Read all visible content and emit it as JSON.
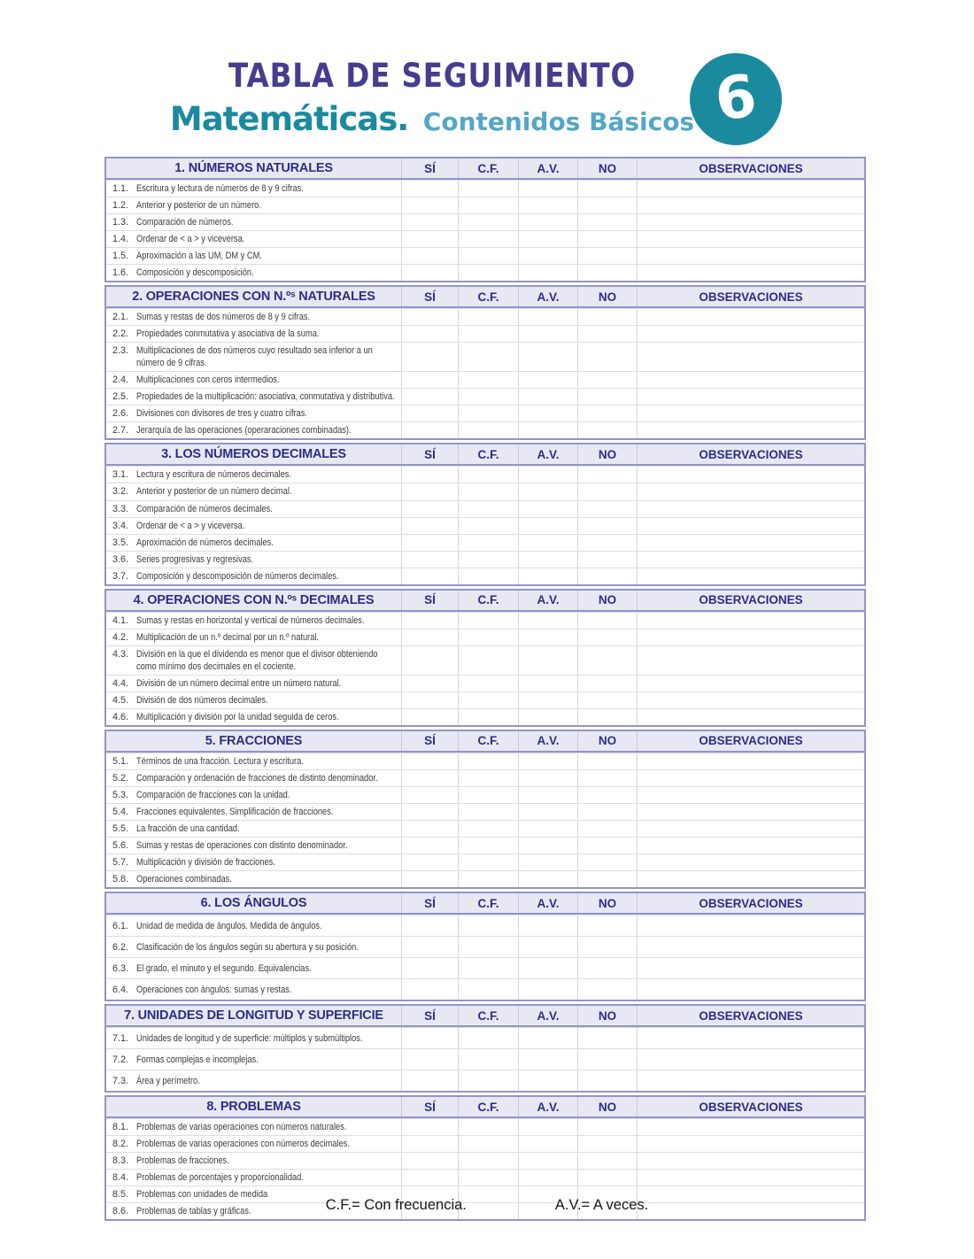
{
  "header": {
    "title": "TABLA DE SEGUIMIENTO",
    "subject": "Matemáticas.",
    "subtitle": "Contenidos Básicos",
    "grade": "6"
  },
  "columns": [
    "SÍ",
    "C.F.",
    "A.V.",
    "NO",
    "OBSERVACIONES"
  ],
  "sections": [
    {
      "title": "1. NÚMEROS NATURALES",
      "rows": [
        {
          "num": "1.1.",
          "text": "Escritura y lectura de números de 8 y 9 cifras."
        },
        {
          "num": "1.2.",
          "text": "Anterior y posterior de un número."
        },
        {
          "num": "1.3.",
          "text": "Comparación de números."
        },
        {
          "num": "1.4.",
          "text": "Ordenar de < a > y viceversa."
        },
        {
          "num": "1.5.",
          "text": "Aproximación a las UM, DM y CM."
        },
        {
          "num": "1.6.",
          "text": "Composición y descomposición."
        }
      ]
    },
    {
      "title": "2. OPERACIONES CON N.ºˢ NATURALES",
      "rows": [
        {
          "num": "2.1.",
          "text": "Sumas y restas de dos números de 8 y 9 cifras."
        },
        {
          "num": "2.2.",
          "text": "Propiedades conmutativa y asociativa de la suma."
        },
        {
          "num": "2.3.",
          "text": "Multiplicaciones de dos números cuyo resultado sea inferior a un número de 9 cifras."
        },
        {
          "num": "2.4.",
          "text": "Multiplicaciones con ceros intermedios."
        },
        {
          "num": "2.5.",
          "text": "Propiedades de la multiplicación: asociativa, conmutativa y distributiva."
        },
        {
          "num": "2.6.",
          "text": "Divisiones con divisores de tres y cuatro cifras."
        },
        {
          "num": "2.7.",
          "text": "Jerarquía de las operaciones (operaraciones combinadas)."
        }
      ]
    },
    {
      "title": "3. LOS NÚMEROS DECIMALES",
      "rows": [
        {
          "num": "3.1.",
          "text": "Lectura y escritura de números decimales."
        },
        {
          "num": "3.2.",
          "text": "Anterior y posterior de un número decimal."
        },
        {
          "num": "3.3.",
          "text": "Comparación de números decimales."
        },
        {
          "num": "3.4.",
          "text": "Ordenar de < a > y viceversa."
        },
        {
          "num": "3.5.",
          "text": "Aproximación de números decimales."
        },
        {
          "num": "3.6.",
          "text": "Series progresivas y regresivas."
        },
        {
          "num": "3.7.",
          "text": "Composición y descomposición de números decimales."
        }
      ]
    },
    {
      "title": "4. OPERACIONES CON N.ºˢ DECIMALES",
      "rows": [
        {
          "num": "4.1.",
          "text": "Sumas y restas en horizontal y vertical de números decimales."
        },
        {
          "num": "4.2.",
          "text": "Multiplicación de un n.º decimal por un n.º natural."
        },
        {
          "num": "4.3.",
          "text": "División en la que el dividendo es menor que el divisor obteniendo como mínimo dos decimales en el cociente."
        },
        {
          "num": "4.4.",
          "text": "División de un número decimal entre un número natural."
        },
        {
          "num": "4.5.",
          "text": "División de dos números decimales."
        },
        {
          "num": "4.6.",
          "text": "Multiplicación y división por la unidad seguida de ceros."
        }
      ]
    },
    {
      "title": "5. FRACCIONES",
      "rows": [
        {
          "num": "5.1.",
          "text": "Términos de una fracción. Lectura y escritura."
        },
        {
          "num": "5.2.",
          "text": "Comparación y ordenación de fracciones de distinto denominador."
        },
        {
          "num": "5.3.",
          "text": "Comparación de fracciones con la unidad."
        },
        {
          "num": "5.4.",
          "text": "Fracciones equivalentes. Simplificación de fracciones."
        },
        {
          "num": "5.5.",
          "text": "La fracción de una cantidad."
        },
        {
          "num": "5.6.",
          "text": "Sumas y restas de operaciones con distinto denominador."
        },
        {
          "num": "5.7.",
          "text": "Multiplicación y división de fracciones."
        },
        {
          "num": "5.8.",
          "text": "Operaciones combinadas."
        }
      ]
    },
    {
      "title": "6. LOS ÁNGULOS",
      "rows": [
        {
          "num": "6.1.",
          "text": "Unidad de medida de ángulos. Medida de ángulos."
        },
        {
          "num": "6.2.",
          "text": "Clasificación de los ángulos según su abertura y su posición."
        },
        {
          "num": "6.3.",
          "text": "El grado, el minuto y el segundo. Equivalencias."
        },
        {
          "num": "6.4.",
          "text": "Operaciones con ángulos: sumas y restas."
        }
      ]
    },
    {
      "title": "7. UNIDADES DE LONGITUD Y SUPERFICIE",
      "rows": [
        {
          "num": "7.1.",
          "text": "Unidades de longitud y de superficie: múltiplos y submúltiplos."
        },
        {
          "num": "7.2.",
          "text": "Formas complejas e incomplejas."
        },
        {
          "num": "7.3.",
          "text": "Área y perímetro."
        }
      ]
    },
    {
      "title": "8. PROBLEMAS",
      "rows": [
        {
          "num": "8.1.",
          "text": "Problemas de varias operaciones con números naturales."
        },
        {
          "num": "8.2.",
          "text": "Problemas de varias operaciones con números decimales."
        },
        {
          "num": "8.3.",
          "text": "Problemas de fracciones."
        },
        {
          "num": "8.4.",
          "text": "Problemas de porcentajes y proporcionalidad."
        },
        {
          "num": "8.5.",
          "text": "Problemas con unidades de medida"
        },
        {
          "num": "8.6.",
          "text": "Problemas de tablas y gráficas."
        }
      ]
    }
  ],
  "legend": {
    "cf": "C.F.= Con frecuencia.",
    "av": "A.V.= A veces."
  },
  "colors": {
    "title_purple": "#473d8f",
    "teal": "#1a8a9f",
    "light_teal": "#54a7c6",
    "section_header_text": "#2d2d87",
    "section_header_bg": "#e8e8f4",
    "section_border": "#9494c6",
    "row_line": "#dcdce9",
    "row_text": "#3b3b3b"
  }
}
